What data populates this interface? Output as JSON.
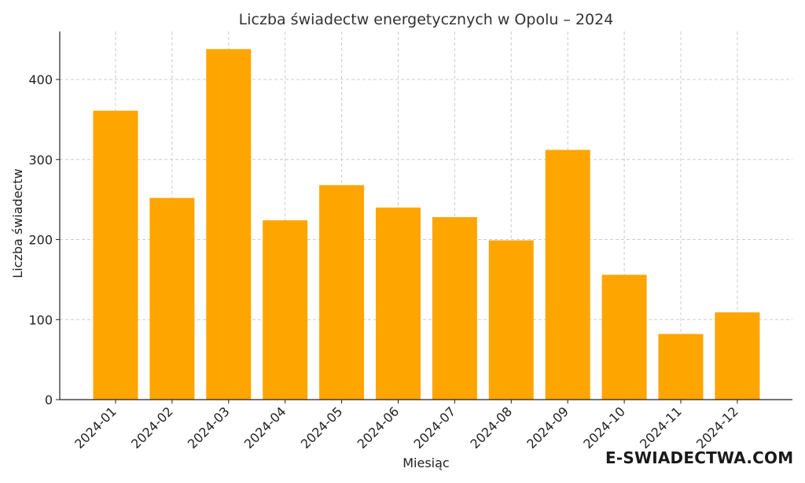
{
  "chart_data": {
    "type": "bar",
    "title": "Liczba świadectw energetycznych w Opolu – 2024",
    "xlabel": "Miesiąc",
    "ylabel": "Liczba świadectw",
    "categories": [
      "2024-01",
      "2024-02",
      "2024-03",
      "2024-04",
      "2024-05",
      "2024-06",
      "2024-07",
      "2024-08",
      "2024-09",
      "2024-10",
      "2024-11",
      "2024-12"
    ],
    "values": [
      361,
      252,
      438,
      224,
      268,
      240,
      228,
      199,
      312,
      156,
      82,
      109
    ],
    "ylim": [
      0,
      460
    ],
    "yticks": [
      0,
      100,
      200,
      300,
      400
    ],
    "grid": true,
    "bar_color": "#FFA500"
  },
  "watermark": {
    "text": "E-SWIADECTWA.COM",
    "mark_color": "#2e9e3e"
  }
}
